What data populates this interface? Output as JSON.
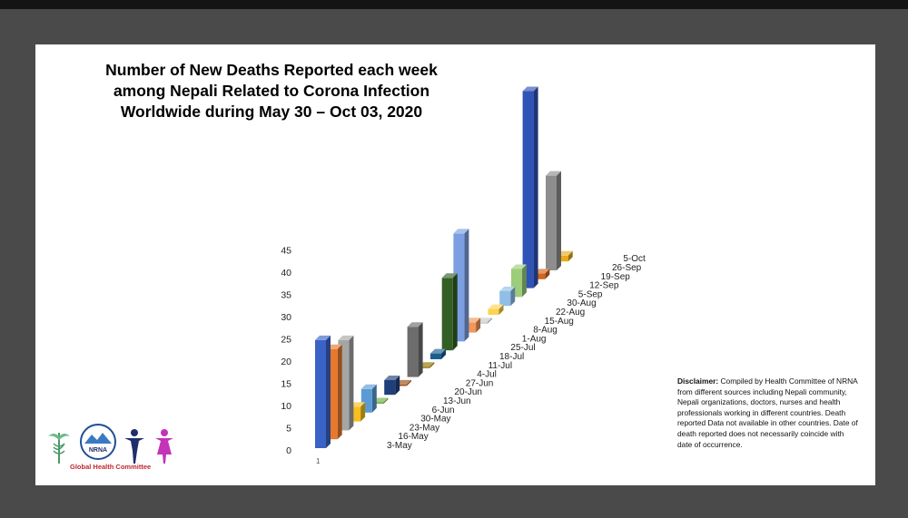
{
  "chart_data": {
    "type": "bar",
    "title_lines": [
      "Number of New Deaths Reported each week",
      "among Nepali Related to Corona Infection",
      "Worldwide during May 30 – Oct 03, 2020"
    ],
    "categories": [
      "3-May",
      "16-May",
      "23-May",
      "30-May",
      "6-Jun",
      "13-Jun",
      "20-Jun",
      "27-Jun",
      "4-Jul",
      "11-Jul",
      "18-Jul",
      "25-Jul",
      "1-Aug",
      "8-Aug",
      "15-Aug",
      "22-Aug",
      "30-Aug",
      "5-Sep",
      "12-Sep",
      "19-Sep",
      "26-Sep",
      "5-Oct"
    ],
    "values": [
      24,
      20,
      20,
      3,
      5,
      0,
      3,
      0,
      11,
      0,
      1,
      16,
      24,
      2,
      0,
      1,
      3,
      6,
      44,
      1,
      21,
      1
    ],
    "colors": [
      "#3a63c6",
      "#e8782c",
      "#a5a5a5",
      "#f7bf1e",
      "#5b9bd5",
      "#70ad47",
      "#1f3f7a",
      "#9e480e",
      "#6d6d6d",
      "#947200",
      "#1d5e91",
      "#335f24",
      "#7b9fe0",
      "#f1975a",
      "#c9c9c9",
      "#fdd34f",
      "#8fbfe8",
      "#9ccd7a",
      "#2f53b6",
      "#d2641c",
      "#8e8e8e",
      "#e8ab1a"
    ],
    "y_ticks": [
      0,
      5,
      10,
      15,
      20,
      25,
      30,
      35,
      40,
      45
    ],
    "ylim": [
      0,
      45
    ],
    "grid": false,
    "legend": "none"
  },
  "disclaimer": {
    "label": "Disclaimer:",
    "text": " Compiled by Health Committee  of NRNA from different sources including Nepali community, Nepali organizations, doctors, nurses and health professionals working in different countries. Death reported Data not available in other countries. Date of death reported does not necessarily coincide with date of occurrence."
  },
  "footer": {
    "slide_number": "1",
    "committee": "Global Health Committee",
    "logo_text": "NRNA"
  }
}
